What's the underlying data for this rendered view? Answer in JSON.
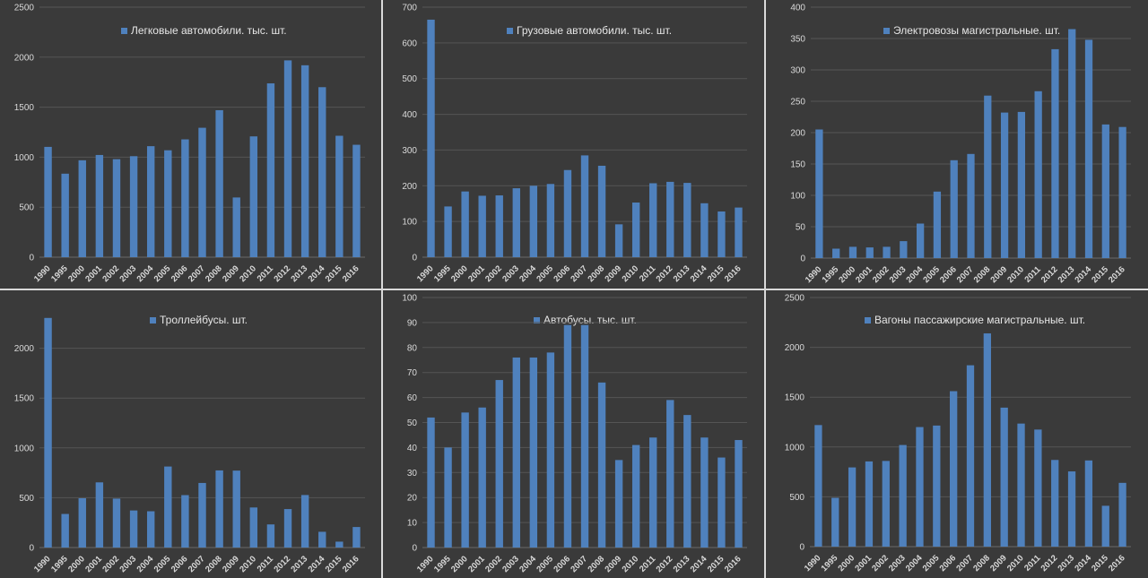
{
  "categories": [
    "1990",
    "1995",
    "2000",
    "2001",
    "2002",
    "2003",
    "2004",
    "2005",
    "2006",
    "2007",
    "2008",
    "2009",
    "2010",
    "2011",
    "2012",
    "2013",
    "2014",
    "2015",
    "2016"
  ],
  "colors": {
    "bar": "#4f81bd",
    "background": "#3a3a3a",
    "grid": "#555555",
    "text": "#d9d9d9"
  },
  "chart_data": [
    {
      "type": "bar",
      "title": "Легковые автомобили. тыс. шт.",
      "legend": "top-center",
      "ylim": [
        0,
        2500
      ],
      "yticks": [
        0,
        500,
        1000,
        1500,
        2000,
        2500
      ],
      "grid": true,
      "values": [
        1103,
        835,
        969,
        1022,
        980,
        1010,
        1110,
        1069,
        1178,
        1294,
        1470,
        597,
        1208,
        1738,
        1968,
        1919,
        1700,
        1214,
        1124
      ]
    },
    {
      "type": "bar",
      "title": "Грузовые автомобили. тыс. шт.",
      "legend": "top-center",
      "ylim": [
        0,
        700
      ],
      "yticks": [
        0,
        100,
        200,
        300,
        400,
        500,
        600,
        700
      ],
      "grid": true,
      "values": [
        665,
        142,
        184,
        172,
        173,
        193,
        200,
        205,
        244,
        285,
        256,
        92,
        153,
        207,
        211,
        208,
        151,
        128,
        139
      ]
    },
    {
      "type": "bar",
      "title": "Электровозы магистральные.   шт.",
      "legend": "top-center",
      "ylim": [
        0,
        400
      ],
      "yticks": [
        0,
        50,
        100,
        150,
        200,
        250,
        300,
        350,
        400
      ],
      "grid": true,
      "values": [
        205,
        15,
        18,
        17,
        18,
        27,
        55,
        106,
        156,
        166,
        259,
        232,
        233,
        266,
        333,
        365,
        348,
        213,
        209
      ]
    },
    {
      "type": "bar",
      "title": "Троллейбусы. шт.",
      "legend": "top-center",
      "ylim": [
        0,
        2500
      ],
      "yticks": [
        0,
        500,
        1000,
        1500,
        2000
      ],
      "grid": true,
      "values": [
        2304,
        337,
        495,
        654,
        491,
        372,
        364,
        813,
        526,
        648,
        774,
        772,
        402,
        232,
        386,
        527,
        158,
        59,
        206
      ]
    },
    {
      "type": "bar",
      "title": "Автобусы. тыс. шт.",
      "legend": "top-center",
      "ylim": [
        0,
        100
      ],
      "yticks": [
        0,
        10,
        20,
        30,
        40,
        50,
        60,
        70,
        80,
        90,
        100
      ],
      "grid": true,
      "values": [
        52,
        40,
        54,
        56,
        67,
        76,
        76,
        78,
        89,
        89,
        66,
        35,
        41,
        44,
        59,
        53,
        44,
        36,
        43
      ]
    },
    {
      "type": "bar",
      "title": "Вагоны пассажирские магистральные. шт.",
      "legend": "top-center",
      "ylim": [
        0,
        2500
      ],
      "yticks": [
        0,
        500,
        1000,
        1500,
        2000,
        2500
      ],
      "grid": true,
      "values": [
        1220,
        490,
        795,
        855,
        860,
        1020,
        1200,
        1215,
        1560,
        1820,
        2140,
        1395,
        1235,
        1175,
        870,
        755,
        865,
        410,
        640
      ]
    }
  ]
}
